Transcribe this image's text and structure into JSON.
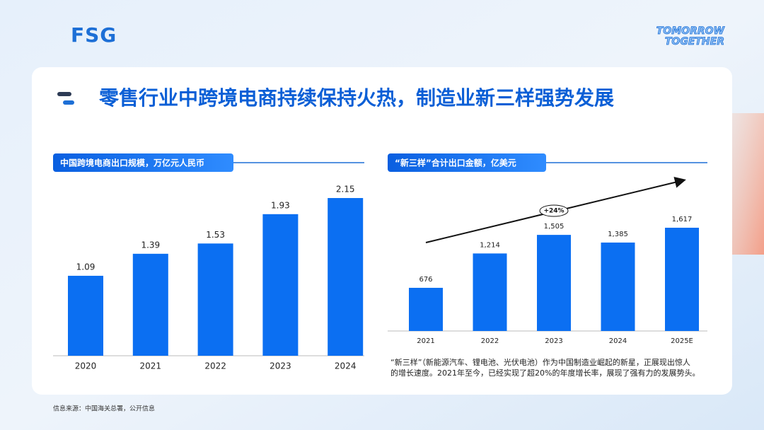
{
  "header": {
    "logo": "FSG",
    "tagline": [
      "TOMORROW",
      "TOGETHER"
    ],
    "title": "零售行业中跨境电商持续保持火热，制造业新三样强势发展"
  },
  "chart_data": [
    {
      "type": "bar",
      "title": "中国跨境电商出口规模，万亿元人民币",
      "categories": [
        "2020",
        "2021",
        "2022",
        "2023",
        "2024"
      ],
      "values": [
        1.09,
        1.39,
        1.53,
        1.93,
        2.15
      ],
      "color": "#0b6ff2"
    },
    {
      "type": "bar",
      "title": "“新三样”合计出口金额，亿美元",
      "categories": [
        "2021",
        "2022",
        "2023",
        "2024",
        "2025E"
      ],
      "values": [
        676,
        1214,
        1505,
        1385,
        1617
      ],
      "value_labels": [
        "676",
        "1,214",
        "1,505",
        "1,385",
        "1,617"
      ],
      "color": "#0b6ff2",
      "annotation": "+24%"
    }
  ],
  "note": [
    "“新三样”（新能源汽车、锂电池、光伏电池）作为中国制造业崛起的新星，正展现出惊人",
    "的增长速度。2021年至今，已经实现了超20%的年度增长率，展现了强有力的发展势头。"
  ],
  "source": "信息来源：中国海关总署，公开信息"
}
